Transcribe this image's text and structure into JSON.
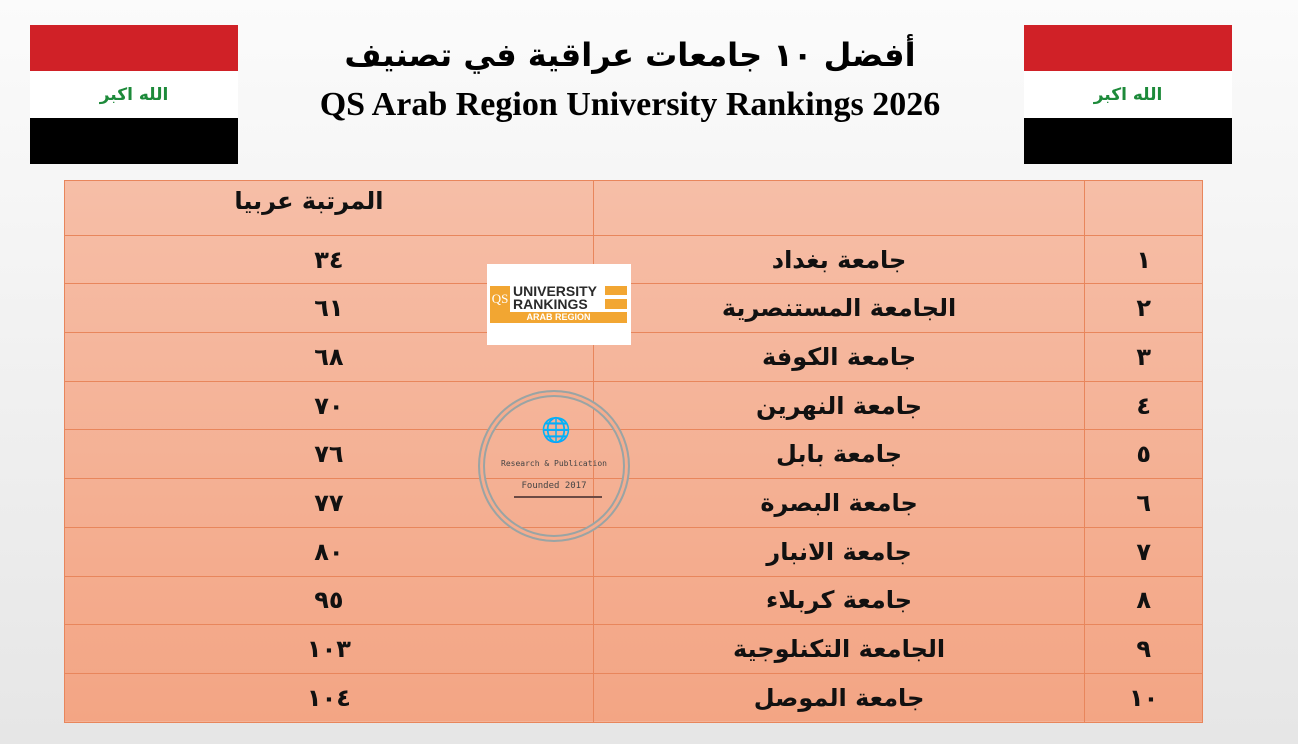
{
  "flag": {
    "text": "الله اكبر",
    "colors": [
      "#d02127",
      "#ffffff",
      "#000000"
    ],
    "text_color": "#1d8a3a"
  },
  "title": {
    "arabic": "أفضل ١٠ جامعات عراقية في تصنيف",
    "english": "QS Arab Region University Rankings 2026"
  },
  "table": {
    "header": {
      "arab_rank": "المرتبة عربيا",
      "university": "",
      "number": ""
    },
    "rows": [
      {
        "number": "١",
        "university": "جامعة بغداد",
        "arab_rank": "٣٤"
      },
      {
        "number": "٢",
        "university": "الجامعة المستنصرية",
        "arab_rank": "٦١"
      },
      {
        "number": "٣",
        "university": "جامعة الكوفة",
        "arab_rank": "٦٨"
      },
      {
        "number": "٤",
        "university": "جامعة النهرين",
        "arab_rank": "٧٠"
      },
      {
        "number": "٥",
        "university": "جامعة بابل",
        "arab_rank": "٧٦"
      },
      {
        "number": "٦",
        "university": "جامعة البصرة",
        "arab_rank": "٧٧"
      },
      {
        "number": "٧",
        "university": "جامعة الانبار",
        "arab_rank": "٨٠"
      },
      {
        "number": "٨",
        "university": "جامعة كربلاء",
        "arab_rank": "٩٥"
      },
      {
        "number": "٩",
        "university": "الجامعة التكنلوجية",
        "arab_rank": "١٠٣"
      },
      {
        "number": "١٠",
        "university": "جامعة الموصل",
        "arab_rank": "١٠٤"
      }
    ]
  },
  "logo": {
    "qs": "QS",
    "line1": "UNIVERSITY",
    "line2": "RANKINGS",
    "line3": "ARAB REGION"
  },
  "watermark": {
    "icon": "globe-cursor-icon",
    "line1": "Research & Publication",
    "line2": "Founded 2017"
  }
}
